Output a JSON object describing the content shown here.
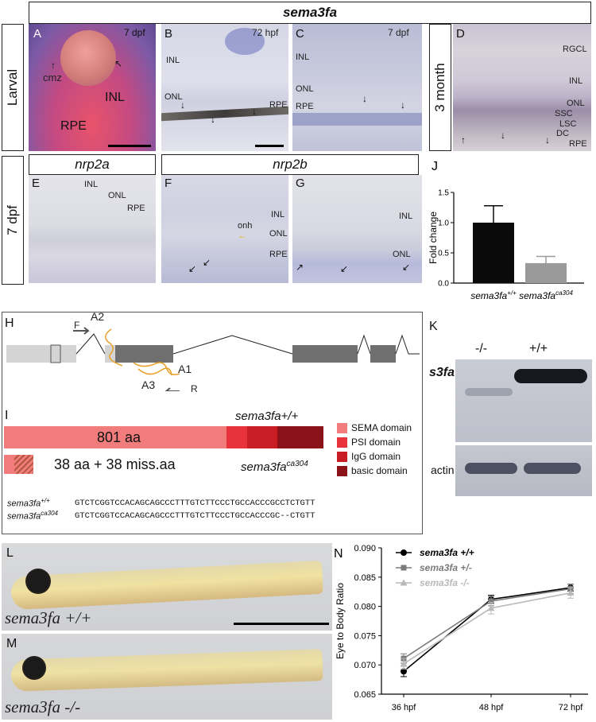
{
  "header": {
    "sema3fa": "sema3fa",
    "nrp2a": "nrp2a",
    "nrp2b": "nrp2b"
  },
  "side_labels": {
    "larval": "Larval",
    "dpf7": "7 dpf",
    "month3": "3 month"
  },
  "panels": {
    "A": {
      "letter": "A",
      "stage": "7 dpf",
      "labels": [
        "cmz",
        "INL",
        "RPE"
      ]
    },
    "B": {
      "letter": "B",
      "stage": "72 hpf",
      "labels": [
        "INL",
        "ONL",
        "RPE"
      ]
    },
    "C": {
      "letter": "C",
      "stage": "7 dpf",
      "labels": [
        "INL",
        "ONL",
        "RPE"
      ]
    },
    "D": {
      "letter": "D",
      "labels": [
        "RGCL",
        "INL",
        "ONL",
        "SSC",
        "LSC",
        "DC",
        "RPE"
      ]
    },
    "E": {
      "letter": "E",
      "labels": [
        "INL",
        "ONL",
        "RPE"
      ]
    },
    "F": {
      "letter": "F",
      "labels": [
        "onh",
        "INL",
        "ONL",
        "RPE"
      ]
    },
    "G": {
      "letter": "G",
      "labels": [
        "INL",
        "ONL"
      ]
    },
    "H": {
      "letter": "H",
      "primer_f": "F",
      "primer_r": "R",
      "a1": "A1",
      "a2": "A2",
      "a3": "A3"
    },
    "I": {
      "letter": "I",
      "wt_title": "sema3fa+/+",
      "wt_length": "801 aa",
      "mut_length": "38 aa + 38 miss.aa",
      "mut_title_base": "sema3fa",
      "mut_title_sup": "ca304",
      "legend": [
        {
          "label": "SEMA domain",
          "color": "#f07c7c"
        },
        {
          "label": "PSI domain",
          "color": "#e8333c"
        },
        {
          "label": "IgG domain",
          "color": "#c91d26"
        },
        {
          "label": "basic domain",
          "color": "#8b1219"
        }
      ],
      "seq_wt_name": "sema3fa",
      "seq_wt_sup": "+/+",
      "seq_wt": "GTCTCGGTCCACAGCAGCCCTTTGTCTTCCCTGCCACCCGCCTCTGTT",
      "seq_mut_name": "sema3fa",
      "seq_mut_sup": "ca304",
      "seq_mut": "GTCTCGGTCCACAGCAGCCCTTTGTCTTCCCTGCCACCCGC--CTGTT"
    },
    "J": {
      "letter": "J"
    },
    "K": {
      "letter": "K",
      "lane1": "-/-",
      "lane2": "+/+",
      "row1": "s3fa",
      "row2": "actin"
    },
    "L": {
      "letter": "L",
      "genotype": "sema3fa +/+"
    },
    "M": {
      "letter": "M",
      "genotype": "sema3fa -/-"
    },
    "N": {
      "letter": "N"
    }
  },
  "chart_data": [
    {
      "type": "bar",
      "panel": "J",
      "categories": [
        "sema3fa+/+",
        "sema3fa ca304"
      ],
      "category_labels": [
        {
          "base": "sema3fa",
          "sup": "+/+"
        },
        {
          "base": "sema3fa",
          "sup": "ca304"
        }
      ],
      "values": [
        1.0,
        0.33
      ],
      "errors": [
        0.28,
        0.11
      ],
      "colors": [
        "#0a0a0a",
        "#9a9a9a"
      ],
      "ylabel": "Fold change",
      "ylim": [
        0,
        1.5
      ],
      "yticks": [
        0.0,
        0.5,
        1.0,
        1.5
      ],
      "ytick_labels": [
        "0.0",
        "0.5",
        "1.0",
        "1.5"
      ]
    },
    {
      "type": "line",
      "panel": "N",
      "x": [
        "36 hpf",
        "48 hpf",
        "72 hpf"
      ],
      "series": [
        {
          "name": "sema3fa +/+",
          "values": [
            0.0689,
            0.0812,
            0.0832
          ],
          "errors": [
            0.0009,
            0.0007,
            0.0006
          ],
          "color": "#000000",
          "marker": "circle"
        },
        {
          "name": "sema3fa +/-",
          "values": [
            0.0711,
            0.0809,
            0.083
          ],
          "errors": [
            0.0008,
            0.0008,
            0.0008
          ],
          "color": "#7b7b7b",
          "marker": "square"
        },
        {
          "name": "sema3fa -/-",
          "values": [
            0.0702,
            0.0797,
            0.0823
          ],
          "errors": [
            0.0009,
            0.001,
            0.0009
          ],
          "color": "#b9b9b9",
          "marker": "triangle"
        }
      ],
      "ylabel": "Eye to Body Ratio",
      "ylim": [
        0.065,
        0.09
      ],
      "yticks": [
        0.065,
        0.07,
        0.075,
        0.08,
        0.085,
        0.09
      ],
      "ytick_labels": [
        "0.065",
        "0.070",
        "0.075",
        "0.080",
        "0.085",
        "0.090"
      ],
      "legend": "top-left"
    }
  ]
}
